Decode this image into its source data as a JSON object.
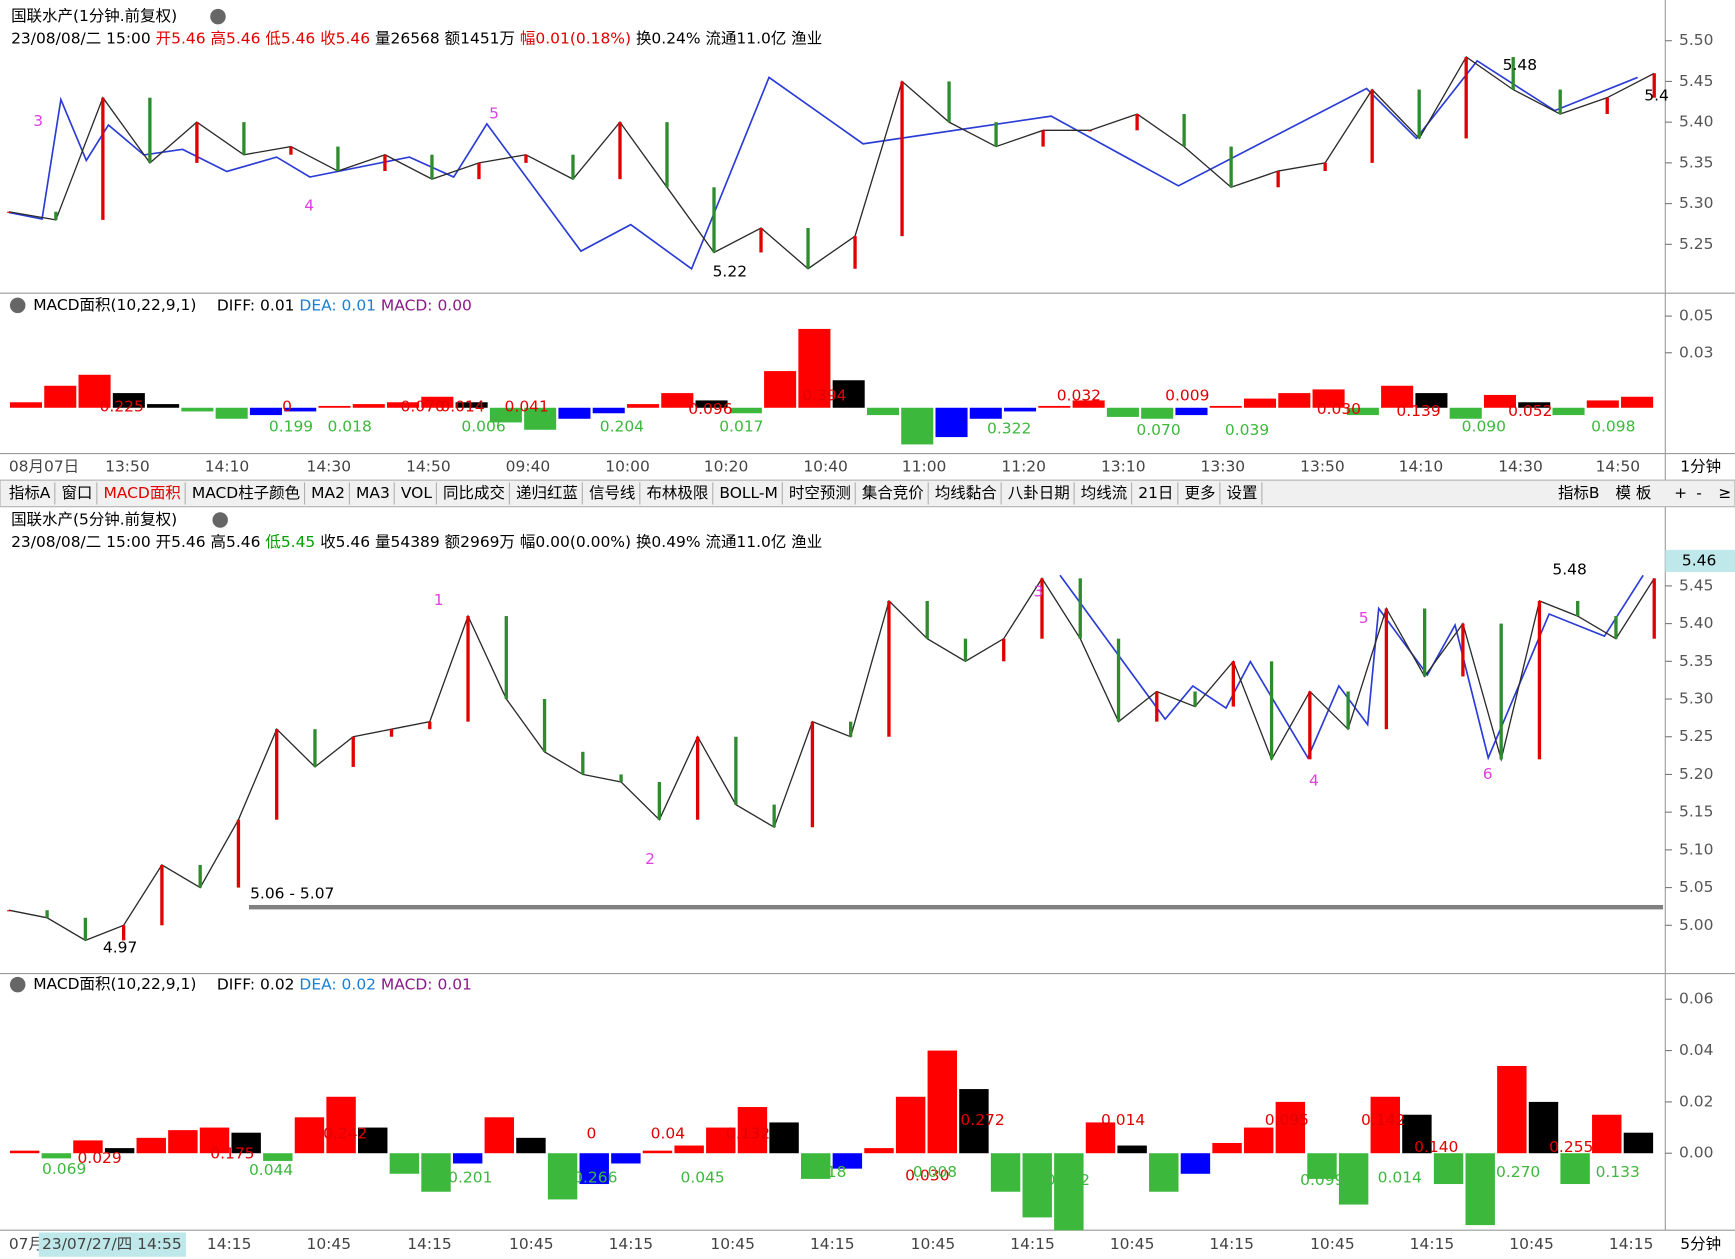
{
  "price_panels": [
    {
      "title": "国联水产(1分钟.前复权)",
      "info": [
        {
          "text": "23/08/08/二 15:00",
          "color": "#000000"
        },
        {
          "text": "开5.46",
          "color": "#e00000"
        },
        {
          "text": "高5.46",
          "color": "#e00000"
        },
        {
          "text": "低5.46",
          "color": "#e00000"
        },
        {
          "text": "收5.46",
          "color": "#e00000"
        },
        {
          "text": "量26568",
          "color": "#000000"
        },
        {
          "text": "额1451万",
          "color": "#000000"
        },
        {
          "text": "幅0.01(0.18%)",
          "color": "#e00000"
        },
        {
          "text": "换0.24%",
          "color": "#000000"
        },
        {
          "text": "流通11.0亿",
          "color": "#000000"
        },
        {
          "text": "渔业",
          "color": "#000000"
        }
      ],
      "ylim": [
        5.19,
        5.55
      ],
      "yticks": [
        {
          "value": 5.5,
          "label": "5.50"
        },
        5.45,
        {
          "value": 5.4,
          "label": "5.40"
        },
        5.35,
        {
          "value": 5.3,
          "label": "5.30"
        },
        5.25
      ],
      "close_values": [
        5.29,
        5.28,
        5.43,
        5.35,
        5.4,
        5.36,
        5.37,
        5.34,
        5.36,
        5.33,
        5.35,
        5.36,
        5.33,
        5.4,
        5.32,
        5.24,
        5.27,
        5.22,
        5.26,
        5.45,
        5.4,
        5.37,
        5.39,
        5.39,
        5.41,
        5.37,
        5.32,
        5.34,
        5.35,
        5.44,
        5.38,
        5.48,
        5.44,
        5.41,
        5.43,
        5.46
      ],
      "line_color": "#2b2b2b",
      "annotations": [
        "3",
        "4",
        "5",
        "5.22",
        "5.48",
        "5.4"
      ]
    },
    {
      "title": "国联水产(5分钟.前复权)",
      "info": [
        {
          "text": "23/08/08/二 15:00",
          "color": "#000000"
        },
        {
          "text": "开5.46",
          "color": "#000000"
        },
        {
          "text": "高5.46",
          "color": "#000000"
        },
        {
          "text": "低5.45",
          "color": "#00a000"
        },
        {
          "text": "收5.46",
          "color": "#000000"
        },
        {
          "text": "量54389",
          "color": "#000000"
        },
        {
          "text": "额2969万",
          "color": "#000000"
        },
        {
          "text": "幅0.00(0.00%)",
          "color": "#000000"
        },
        {
          "text": "换0.49%",
          "color": "#000000"
        },
        {
          "text": "流通11.0亿",
          "color": "#000000"
        },
        {
          "text": "渔业",
          "color": "#000000"
        }
      ],
      "ylim": [
        4.936,
        5.555
      ],
      "yticks": [
        5.45,
        {
          "value": 5.4,
          "label": "5.40"
        },
        5.35,
        {
          "value": 5.3,
          "label": "5.30"
        },
        5.25,
        {
          "value": 5.2,
          "label": "5.20"
        },
        5.15,
        {
          "value": 5.1,
          "label": "5.10"
        },
        5.05,
        {
          "value": 5.0,
          "label": "5.00"
        }
      ],
      "close_values": [
        5.02,
        5.01,
        4.98,
        5.0,
        5.08,
        5.05,
        5.14,
        5.26,
        5.21,
        5.25,
        5.26,
        5.27,
        5.41,
        5.3,
        5.23,
        5.2,
        5.19,
        5.14,
        5.25,
        5.16,
        5.13,
        5.27,
        5.25,
        5.43,
        5.38,
        5.35,
        5.38,
        5.46,
        5.38,
        5.27,
        5.31,
        5.29,
        5.35,
        5.22,
        5.31,
        5.26,
        5.42,
        5.33,
        5.4,
        5.22,
        5.43,
        5.41,
        5.38,
        5.46
      ],
      "line_color": "#2b2b2b",
      "annotations": [
        "1",
        "2",
        "3",
        "4",
        "5",
        "6",
        "5.48",
        "4.97",
        "5.06 - 5.07"
      ],
      "current_price": "5.46"
    }
  ],
  "macd_panels": [
    {
      "title": "MACD面积(10,22,9,1)",
      "readouts": [
        {
          "text": "DIFF: 0.01",
          "color": "#000000"
        },
        {
          "text": "DEA: 0.01",
          "color": "#1a7fd4"
        },
        {
          "text": "MACD: 0.00",
          "color": "#8a1a8a"
        }
      ],
      "ylim": [
        -0.025,
        0.0625
      ],
      "yticks": [
        0.05,
        0.03
      ],
      "bar_values": [
        0.003,
        0.012,
        0.018,
        0.008,
        0.002,
        -0.002,
        -0.006,
        -0.004,
        -0.002,
        0.001,
        0.002,
        0.003,
        0.006,
        0.003,
        -0.008,
        -0.012,
        -0.006,
        -0.003,
        0.002,
        0.008,
        0.004,
        -0.003,
        0.02,
        0.043,
        0.015,
        -0.004,
        -0.02,
        -0.016,
        -0.006,
        -0.002,
        0.001,
        0.004,
        -0.005,
        -0.006,
        -0.004,
        0.001,
        0.005,
        0.008,
        0.01,
        -0.004,
        0.012,
        0.008,
        -0.006,
        0.007,
        0.003,
        -0.004,
        0.004,
        0.006
      ],
      "colors": {
        "up": "#ff0000",
        "down": "#000000",
        "neg": "#3cb83c",
        "negup": "#0000ff"
      },
      "annotations": [
        {
          "text": "0.225",
          "color": "#e00000"
        },
        {
          "text": "0",
          "color": "#e00000"
        },
        {
          "text": "0.199",
          "color": "#3cb83c"
        },
        {
          "text": "0.018",
          "color": "#3cb83c"
        },
        {
          "text": "0.070",
          "color": "#e00000"
        },
        {
          "text": "0.014",
          "color": "#e00000"
        },
        {
          "text": "0.006",
          "color": "#3cb83c"
        },
        {
          "text": "0.041",
          "color": "#e00000"
        },
        {
          "text": "0.204",
          "color": "#3cb83c"
        },
        {
          "text": "0.096",
          "color": "#e00000"
        },
        {
          "text": "0.017",
          "color": "#3cb83c"
        },
        {
          "text": "0.394",
          "color": "#e00000"
        },
        {
          "text": "0.322",
          "color": "#3cb83c"
        },
        {
          "text": "0.032",
          "color": "#e00000"
        },
        {
          "text": "0.009",
          "color": "#e00000"
        },
        {
          "text": "0.070",
          "color": "#3cb83c"
        },
        {
          "text": "0.039",
          "color": "#3cb83c"
        },
        {
          "text": "0.030",
          "color": "#e00000"
        },
        {
          "text": "0.139",
          "color": "#e00000"
        },
        {
          "text": "0.090",
          "color": "#3cb83c"
        },
        {
          "text": "0.052",
          "color": "#e00000"
        },
        {
          "text": "0.098",
          "color": "#3cb83c"
        }
      ]
    },
    {
      "title": "MACD面积(10,22,9,1)",
      "readouts": [
        {
          "text": "DIFF: 0.02",
          "color": "#000000"
        },
        {
          "text": "DEA: 0.02",
          "color": "#1a7fd4"
        },
        {
          "text": "MACD: 0.01",
          "color": "#8a1a8a"
        }
      ],
      "ylim": [
        -0.03,
        0.07
      ],
      "yticks": [
        0.06,
        0.04,
        0.02,
        {
          "value": 0,
          "label": "0.00"
        }
      ],
      "bar_values": [
        0.001,
        -0.002,
        0.005,
        0.002,
        0.006,
        0.009,
        0.01,
        0.008,
        -0.003,
        0.014,
        0.022,
        0.01,
        -0.008,
        -0.015,
        -0.004,
        0.014,
        0.006,
        -0.018,
        -0.012,
        -0.004,
        0.001,
        0.003,
        0.01,
        0.018,
        0.012,
        -0.01,
        -0.006,
        0.002,
        0.022,
        0.04,
        0.025,
        -0.015,
        -0.025,
        -0.03,
        0.012,
        0.003,
        -0.015,
        -0.008,
        0.004,
        0.01,
        0.02,
        -0.01,
        -0.02,
        0.022,
        0.015,
        -0.012,
        -0.028,
        0.034,
        0.02,
        -0.012,
        0.015,
        0.008
      ],
      "colors": {
        "up": "#ff0000",
        "down": "#000000",
        "neg": "#3cb83c",
        "negup": "#0000ff"
      },
      "annotations": [
        {
          "text": "0.069",
          "color": "#3cb83c"
        },
        {
          "text": "0.029",
          "color": "#e00000"
        },
        {
          "text": "0.175",
          "color": "#e00000"
        },
        {
          "text": "0.044",
          "color": "#3cb83c"
        },
        {
          "text": "0.242",
          "color": "#e00000"
        },
        {
          "text": "0.201",
          "color": "#3cb83c"
        },
        {
          "text": "0",
          "color": "#e00000"
        },
        {
          "text": "0.266",
          "color": "#3cb83c"
        },
        {
          "text": "0.04",
          "color": "#e00000"
        },
        {
          "text": "0.045",
          "color": "#3cb83c"
        },
        {
          "text": "0.132",
          "color": "#e00000"
        },
        {
          "text": "0.118",
          "color": "#3cb83c"
        },
        {
          "text": "0.030",
          "color": "#e00000"
        },
        {
          "text": "0.008",
          "color": "#3cb83c"
        },
        {
          "text": "0.272",
          "color": "#e00000"
        },
        {
          "text": "0.352",
          "color": "#3cb83c"
        },
        {
          "text": "0.014",
          "color": "#e00000"
        },
        {
          "text": "0.095",
          "color": "#e00000"
        },
        {
          "text": "0.099",
          "color": "#3cb83c"
        },
        {
          "text": "0.142",
          "color": "#e00000"
        },
        {
          "text": "0.014",
          "color": "#3cb83c"
        },
        {
          "text": "0.140",
          "color": "#e00000"
        },
        {
          "text": "0.270",
          "color": "#3cb83c"
        },
        {
          "text": "0.255",
          "color": "#e00000"
        },
        {
          "text": "0.133",
          "color": "#3cb83c"
        }
      ]
    }
  ],
  "time_axes": [
    {
      "labels": [
        "08月07日",
        "13:50",
        "14:10",
        "14:30",
        "14:50",
        "09:40",
        "10:00",
        "10:20",
        "10:40",
        "11:00",
        "11:20",
        "13:10",
        "13:30",
        "13:50",
        "14:10",
        "14:30",
        "14:50"
      ],
      "period": "1分钟"
    },
    {
      "labels": [
        "07月",
        "23/07/27/四 14:55",
        "14:15",
        "10:45",
        "14:15",
        "10:45",
        "14:15",
        "10:45",
        "14:15",
        "10:45",
        "14:15",
        "10:45",
        "14:15",
        "10:45",
        "14:15",
        "10:45",
        "14:15"
      ],
      "period": "5分钟"
    }
  ],
  "toolbar": {
    "left": [
      "指标A",
      "窗口",
      "MACD面积",
      "MACD柱子颜色",
      "MA2",
      "MA3",
      "VOL",
      "同比成交",
      "递归红蓝",
      "信号线",
      "布林极限",
      "BOLL-M",
      "时空预测",
      "集合竞价",
      "均线黏合",
      "八卦日期",
      "均线流",
      "21日",
      "更多",
      "设置"
    ],
    "active": "MACD面积",
    "right": [
      "指标B",
      "模 板",
      "+",
      "-",
      "≥"
    ]
  }
}
